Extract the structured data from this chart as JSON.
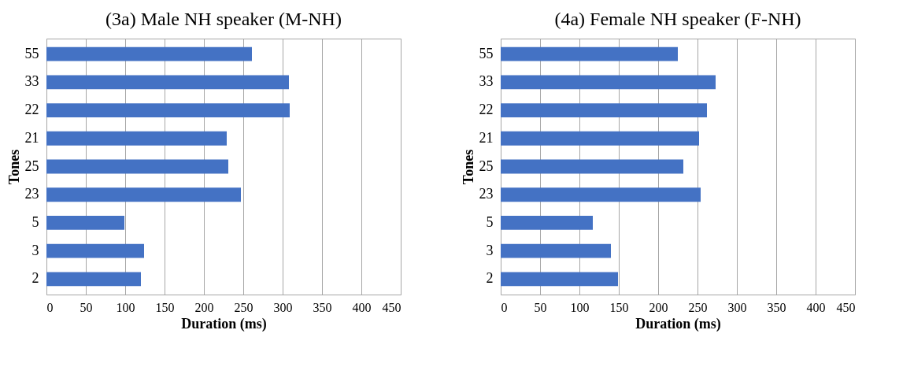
{
  "chart_data": [
    {
      "type": "bar",
      "orientation": "horizontal",
      "title": "(3a) Male NH speaker (M-NH)",
      "xlabel": "Duration (ms)",
      "ylabel": "Tones",
      "categories": [
        "55",
        "33",
        "22",
        "21",
        "25",
        "23",
        "5",
        "3",
        "2"
      ],
      "values": [
        261,
        308,
        309,
        229,
        231,
        247,
        99,
        124,
        120
      ],
      "color": "#4472c4",
      "xlim": [
        0,
        450
      ],
      "xticks": [
        0,
        50,
        100,
        150,
        200,
        250,
        300,
        350,
        400,
        450
      ],
      "grid": "x"
    },
    {
      "type": "bar",
      "orientation": "horizontal",
      "title": "(4a) Female NH speaker (F-NH)",
      "xlabel": "Duration (ms)",
      "ylabel": "Tones",
      "categories": [
        "55",
        "33",
        "22",
        "21",
        "25",
        "23",
        "5",
        "3",
        "2"
      ],
      "values": [
        225,
        273,
        262,
        252,
        232,
        254,
        117,
        140,
        149
      ],
      "color": "#4472c4",
      "xlim": [
        0,
        450
      ],
      "xticks": [
        0,
        50,
        100,
        150,
        200,
        250,
        300,
        350,
        400,
        450
      ],
      "grid": "x"
    }
  ]
}
